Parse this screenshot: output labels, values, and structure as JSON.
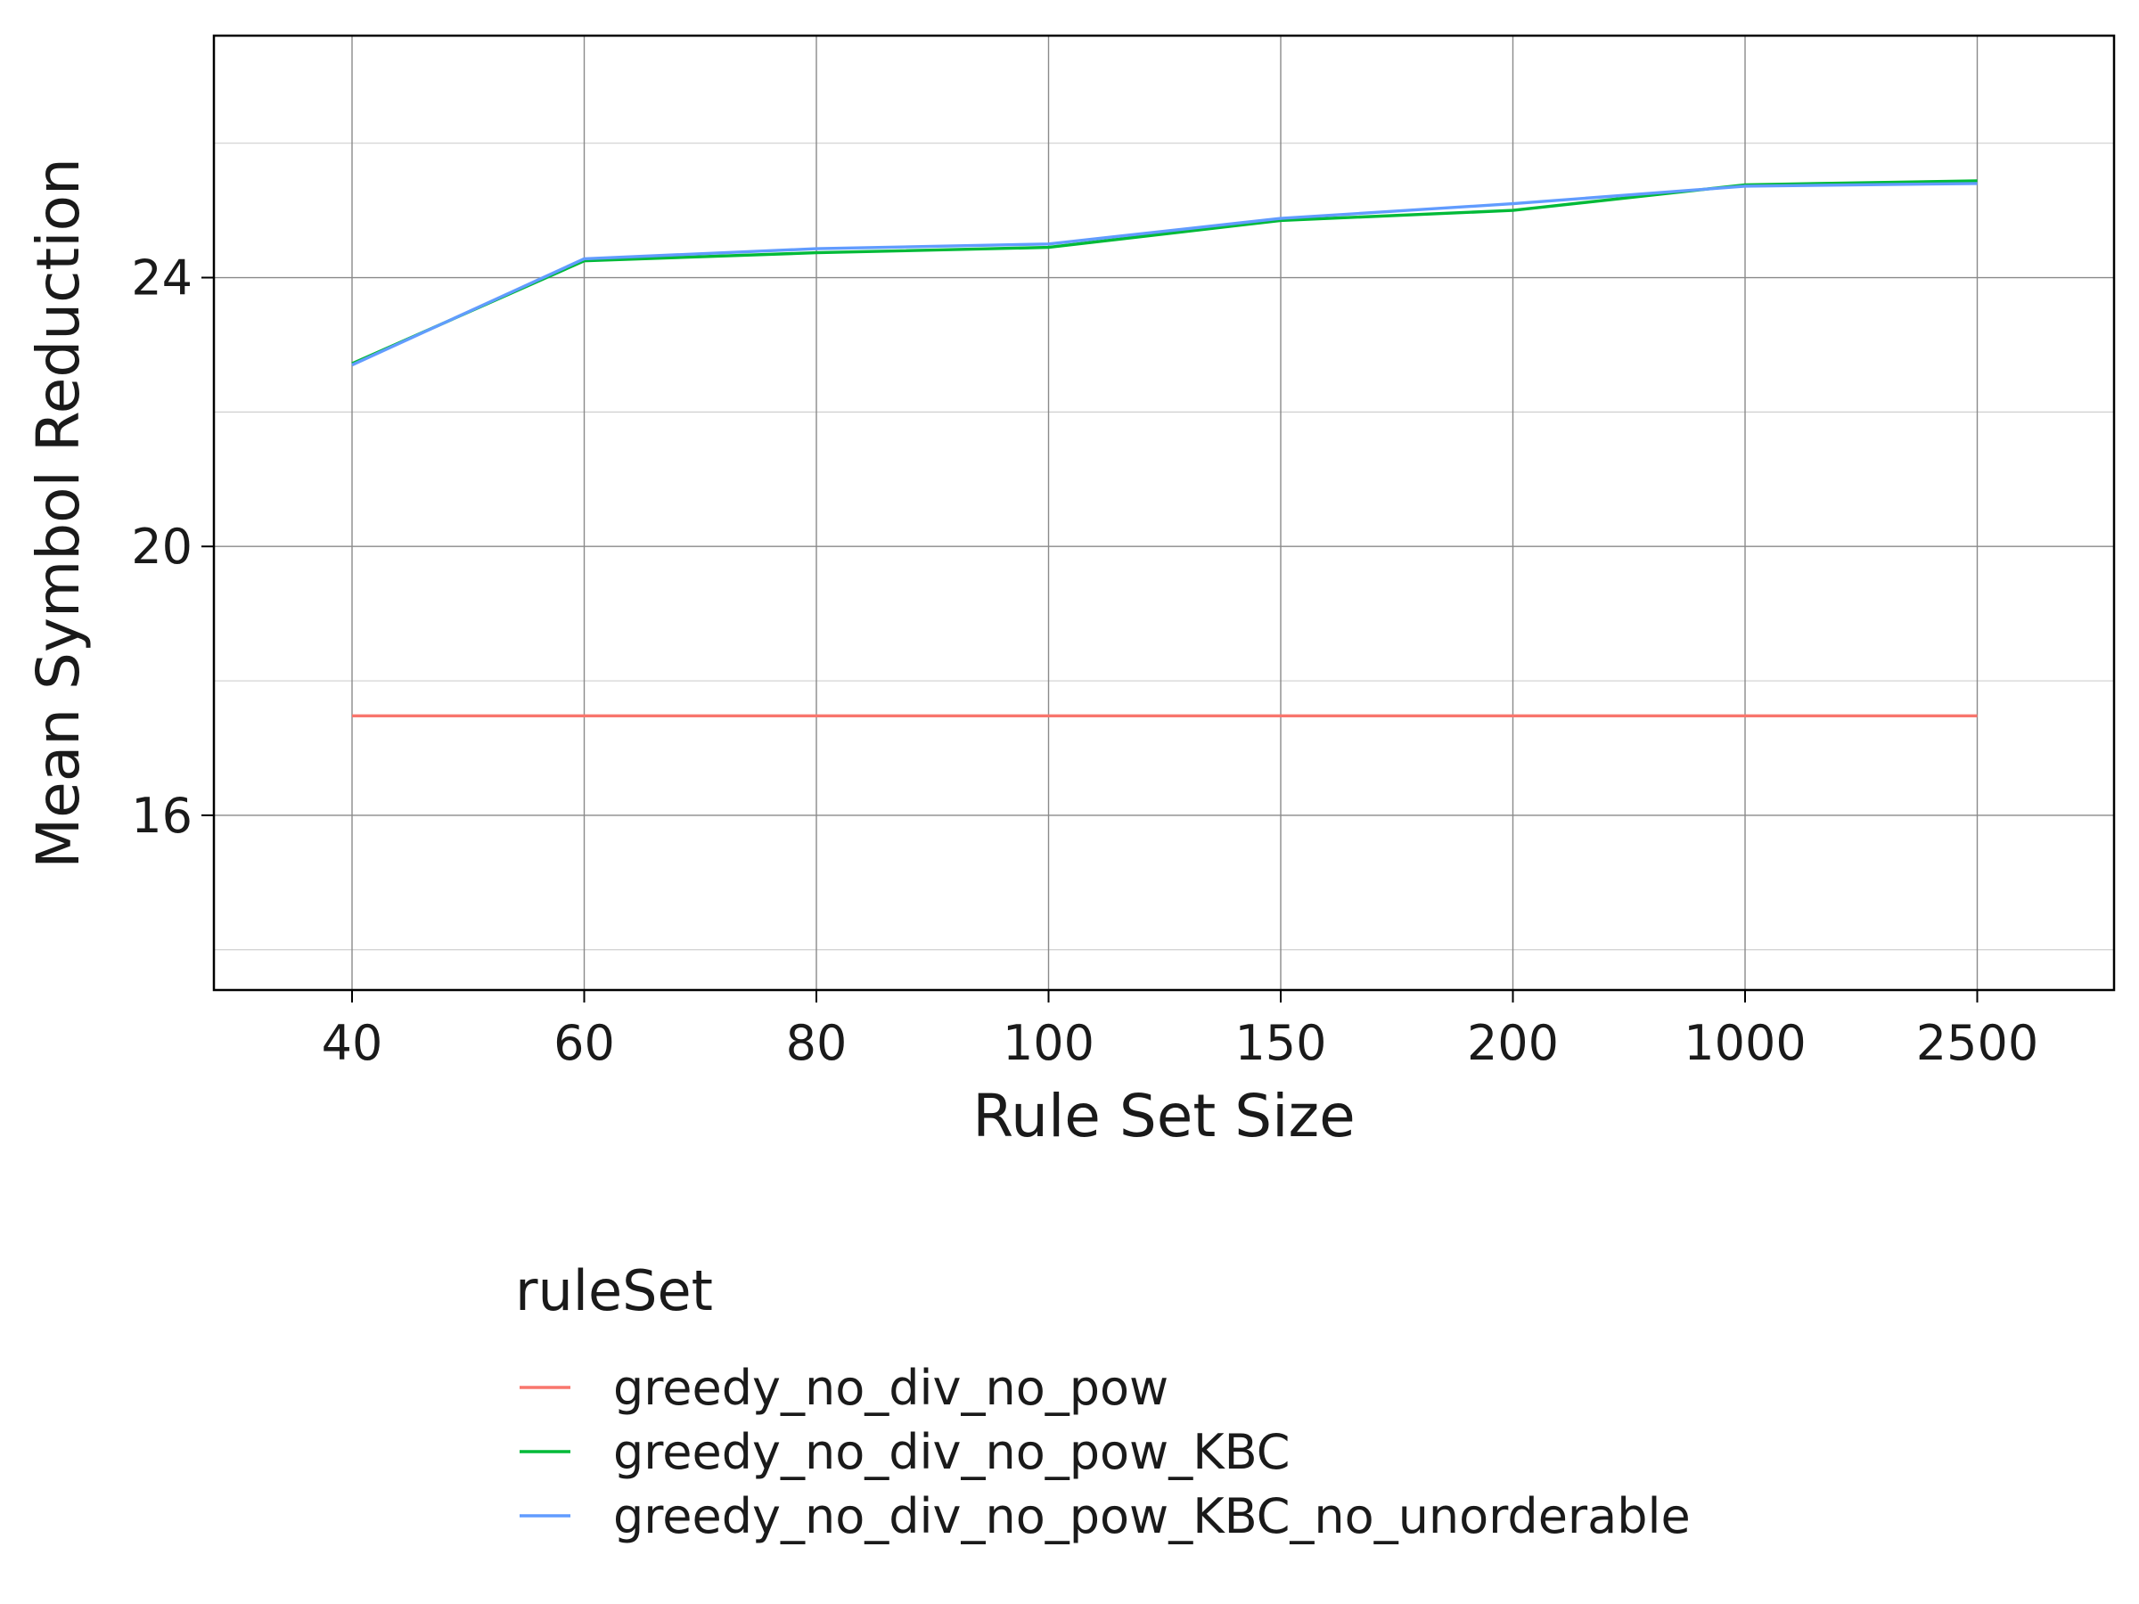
{
  "chart_data": {
    "type": "line",
    "title": "",
    "xlabel": "Rule Set Size",
    "ylabel": "Mean Symbol Reduction",
    "categories": [
      "40",
      "60",
      "80",
      "100",
      "150",
      "200",
      "1000",
      "2500"
    ],
    "yticks": [
      16,
      20,
      24
    ],
    "ylim": [
      13.4,
      27.6
    ],
    "grid": true,
    "legend": {
      "title": "ruleSet",
      "placement": "bottom"
    },
    "series": [
      {
        "name": "greedy_no_div_no_pow",
        "color": "#f8766d",
        "values": [
          17.48,
          17.48,
          17.48,
          17.48,
          17.48,
          17.48,
          17.48,
          17.48
        ]
      },
      {
        "name": "greedy_no_div_no_pow_KBC",
        "color": "#00ba38",
        "values": [
          22.72,
          24.25,
          24.37,
          24.45,
          24.85,
          25.0,
          25.38,
          25.44
        ]
      },
      {
        "name": "greedy_no_div_no_pow_KBC_no_unorderable",
        "color": "#619cff",
        "values": [
          22.7,
          24.28,
          24.43,
          24.5,
          24.88,
          25.1,
          25.36,
          25.4
        ]
      }
    ]
  }
}
